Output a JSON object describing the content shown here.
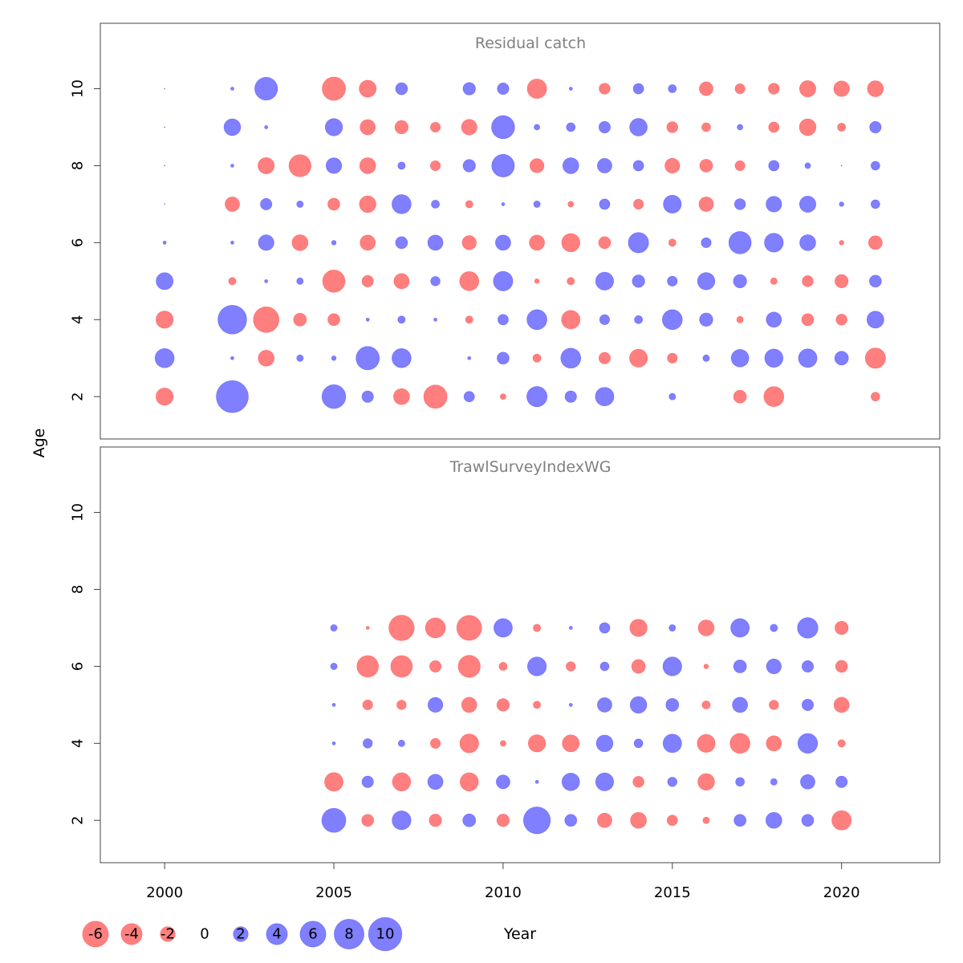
{
  "colors": {
    "positive": "#0000ff",
    "negative": "#ff0000",
    "fill_opacity": 0.5
  },
  "chart_data": [
    {
      "type": "bubble",
      "title": "Residual catch",
      "xlabel": "Year",
      "ylabel": "Age",
      "xlim": [
        1998.1,
        2022.9
      ],
      "ylim": [
        0.9,
        11.7
      ],
      "ages": [
        2,
        3,
        4,
        5,
        6,
        7,
        8,
        9,
        10
      ],
      "years": [
        2000,
        2002,
        2003,
        2004,
        2005,
        2006,
        2007,
        2008,
        2009,
        2010,
        2011,
        2012,
        2013,
        2014,
        2015,
        2016,
        2017,
        2018,
        2019,
        2020,
        2021
      ],
      "residuals": [
        [
          -2.7,
          3.3,
          -2.7,
          2.6,
          0.1,
          0,
          0,
          0,
          0
        ],
        [
          9.2,
          0.1,
          7.4,
          -0.5,
          0.1,
          -1.9,
          0.1,
          2.5,
          0.1
        ],
        [
          null,
          -2.3,
          -5.9,
          0.1,
          2.2,
          1.2,
          -2.4,
          0.1,
          4.7
        ],
        [
          null,
          0.4,
          -1.5,
          0.4,
          -2.3,
          0.4,
          -4.4,
          null,
          null
        ],
        [
          5.1,
          0.2,
          -1.3,
          -4.5,
          0.2,
          -1.3,
          2.2,
          2.7,
          -4.9
        ],
        [
          1.2,
          4.9,
          0.1,
          -1.2,
          -2.1,
          -2.5,
          -2.3,
          -2.1,
          -2.6
        ],
        [
          -2.3,
          3.3,
          0.5,
          -2.1,
          1.3,
          3.3,
          0.5,
          -1.6,
          1.3
        ],
        [
          -4.9,
          null,
          0.1,
          0.8,
          2.1,
          0.6,
          -0.9,
          -0.9,
          null
        ],
        [
          1.0,
          0.1,
          -0.5,
          -3.3,
          -1.8,
          -0.5,
          1.4,
          -2.2,
          1.4
        ],
        [
          -0.3,
          1.3,
          1.0,
          3.4,
          2.1,
          0.1,
          4.6,
          4.8,
          1.2
        ],
        [
          3.7,
          -0.6,
          3.6,
          -0.2,
          -2.1,
          0.4,
          -1.8,
          0.3,
          -3.4
        ],
        [
          1.2,
          3.6,
          -3.1,
          -0.5,
          -3.0,
          -0.3,
          2.3,
          0.7,
          0.1
        ],
        [
          3.1,
          -1.2,
          0.9,
          2.9,
          -1.3,
          1.0,
          1.9,
          1.2,
          -1.1
        ],
        [
          null,
          -2.9,
          0.6,
          1.4,
          3.7,
          -0.9,
          1.0,
          2.8,
          1.0
        ],
        [
          0.4,
          -0.9,
          3.6,
          0.9,
          -0.5,
          2.9,
          -2.0,
          -1.1,
          0.6
        ],
        [
          null,
          0.4,
          1.6,
          2.7,
          0.9,
          -1.9,
          -1.5,
          -0.7,
          -1.7
        ],
        [
          -1.5,
          2.8,
          -0.4,
          1.6,
          4.5,
          1.1,
          -0.9,
          0.3,
          -0.9
        ],
        [
          -3.6,
          3.0,
          2.1,
          -0.4,
          3.2,
          2.2,
          1.0,
          -1.0,
          -1.1
        ],
        [
          null,
          3.1,
          -1.3,
          -1.1,
          2.3,
          2.4,
          0.3,
          -2.5,
          -2.4
        ],
        [
          null,
          1.7,
          -1.1,
          -1.6,
          -0.2,
          0.2,
          0,
          -0.6,
          -2.2
        ],
        [
          -0.7,
          -3.7,
          2.6,
          1.3,
          -1.7,
          0.7,
          0.7,
          1.2,
          -2.3
        ]
      ]
    },
    {
      "type": "bubble",
      "title": "TrawlSurveyIndexWG",
      "xlabel": "Year",
      "ylabel": "Age",
      "xlim": [
        1998.1,
        2022.9
      ],
      "ylim": [
        0.9,
        11.7
      ],
      "ages": [
        2,
        3,
        4,
        5,
        6,
        7
      ],
      "years": [
        2005,
        2006,
        2007,
        2008,
        2009,
        2010,
        2011,
        2012,
        2013,
        2014,
        2015,
        2016,
        2017,
        2018,
        2019,
        2020
      ],
      "residuals": [
        [
          5.2,
          -3.1,
          0.1,
          0.1,
          0.4,
          0.4
        ],
        [
          -1.3,
          1.2,
          0.8,
          -0.9,
          -4.2,
          -0.1
        ],
        [
          3.2,
          -3.0,
          0.4,
          -0.8,
          -4.2,
          -5.8
        ],
        [
          -1.4,
          2.1,
          -0.9,
          2.0,
          -1.2,
          -3.6
        ],
        [
          1.5,
          -3.0,
          -3.2,
          -2.1,
          -4.4,
          -5.6
        ],
        [
          -1.4,
          1.7,
          -0.3,
          -1.4,
          -0.6,
          3.1
        ],
        [
          6.5,
          0.1,
          -2.7,
          -0.5,
          3.2,
          -0.5
        ],
        [
          1.3,
          2.8,
          -2.6,
          0.1,
          -0.8,
          0.1
        ],
        [
          -1.9,
          2.9,
          2.5,
          1.9,
          0.7,
          1.0
        ],
        [
          -2.3,
          -1.1,
          0.7,
          2.5,
          -1.7,
          -2.7
        ],
        [
          -1.0,
          0.8,
          3.1,
          1.5,
          3.2,
          0.4
        ],
        [
          -0.4,
          -2.5,
          -2.9,
          -0.6,
          -0.2,
          -2.3
        ],
        [
          1.3,
          0.7,
          -3.6,
          2.1,
          1.5,
          3.1
        ],
        [
          2.3,
          0.4,
          -2.1,
          -0.8,
          2.0,
          0.5
        ],
        [
          1.3,
          1.9,
          3.5,
          1.2,
          1.2,
          3.8
        ],
        [
          -3.4,
          1.2,
          -0.5,
          -2.1,
          -1.3,
          -1.6
        ]
      ]
    }
  ],
  "legend": {
    "items": [
      {
        "label": "-6",
        "value": -6
      },
      {
        "label": "-4",
        "value": -4
      },
      {
        "label": "-2",
        "value": -2
      },
      {
        "label": "0",
        "value": 0
      },
      {
        "label": "2",
        "value": 2
      },
      {
        "label": "4",
        "value": 4
      },
      {
        "label": "6",
        "value": 6
      },
      {
        "label": "8",
        "value": 8
      },
      {
        "label": "10",
        "value": 10
      }
    ]
  },
  "axes": {
    "x_ticks": [
      2000,
      2005,
      2010,
      2015,
      2020
    ],
    "y_ticks": [
      2,
      4,
      6,
      8,
      10
    ]
  }
}
